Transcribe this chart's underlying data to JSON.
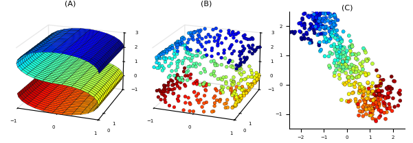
{
  "title_A": "(A)",
  "title_B": "(B)",
  "title_C": "(C)",
  "background_color": "#ffffff",
  "n_points": 500,
  "seed": 0,
  "cmap": "jet",
  "surface_alpha": 1.0,
  "scatter_s": 12,
  "figsize": [
    6.01,
    2.09
  ],
  "dpi": 100,
  "elev": 20,
  "azim": -70,
  "panel_A_xlim": [
    -1,
    1
  ],
  "panel_A_ylim": [
    0,
    5
  ],
  "panel_A_zlim": [
    -1,
    3
  ],
  "panel_C_xlim": [
    -2.5,
    2.5
  ],
  "panel_C_ylim": [
    -1.5,
    2.5
  ]
}
